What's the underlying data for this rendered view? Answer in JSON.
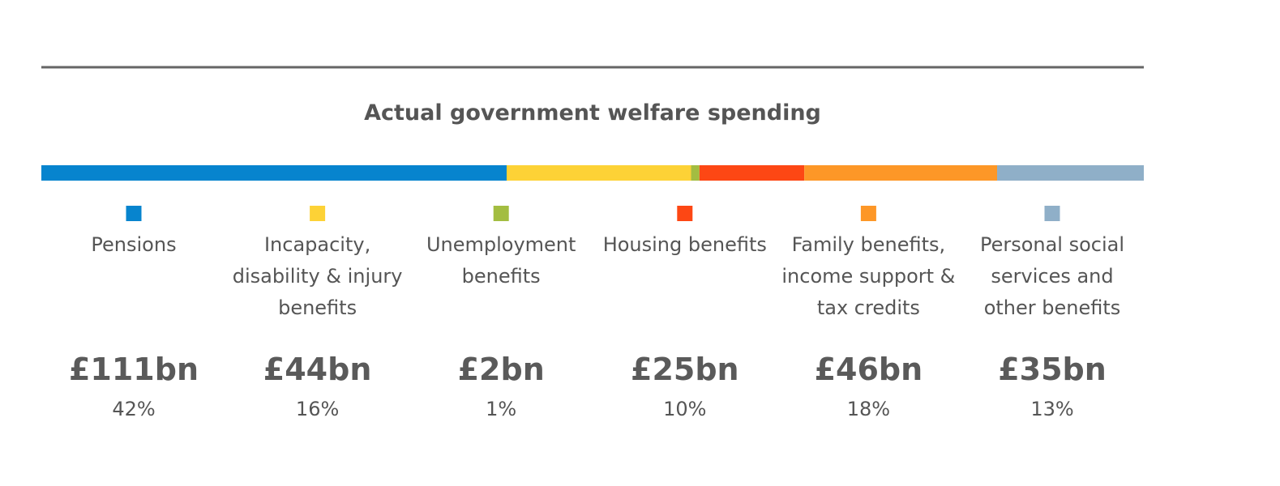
{
  "chart_data": {
    "type": "stacked-bar",
    "title": "Actual government welfare spending",
    "categories": [
      "Pensions",
      "Incapacity, disability & injury benefits",
      "Unemployment benefits",
      "Housing benefits",
      "Family benefits, income support & tax credits",
      "Personal social services and other benefits"
    ],
    "values": [
      111,
      44,
      2,
      25,
      46,
      35
    ],
    "value_labels": [
      "£111bn",
      "£44bn",
      "£2bn",
      "£25bn",
      "£46bn",
      "£35bn"
    ],
    "shares": [
      42,
      16,
      1,
      10,
      18,
      13
    ],
    "share_labels": [
      "42%",
      "16%",
      "1%",
      "10%",
      "18%",
      "13%"
    ],
    "colors": [
      "#0784ce",
      "#fdd236",
      "#a3bd41",
      "#fd4714",
      "#fd9727",
      "#8fafc8"
    ]
  }
}
